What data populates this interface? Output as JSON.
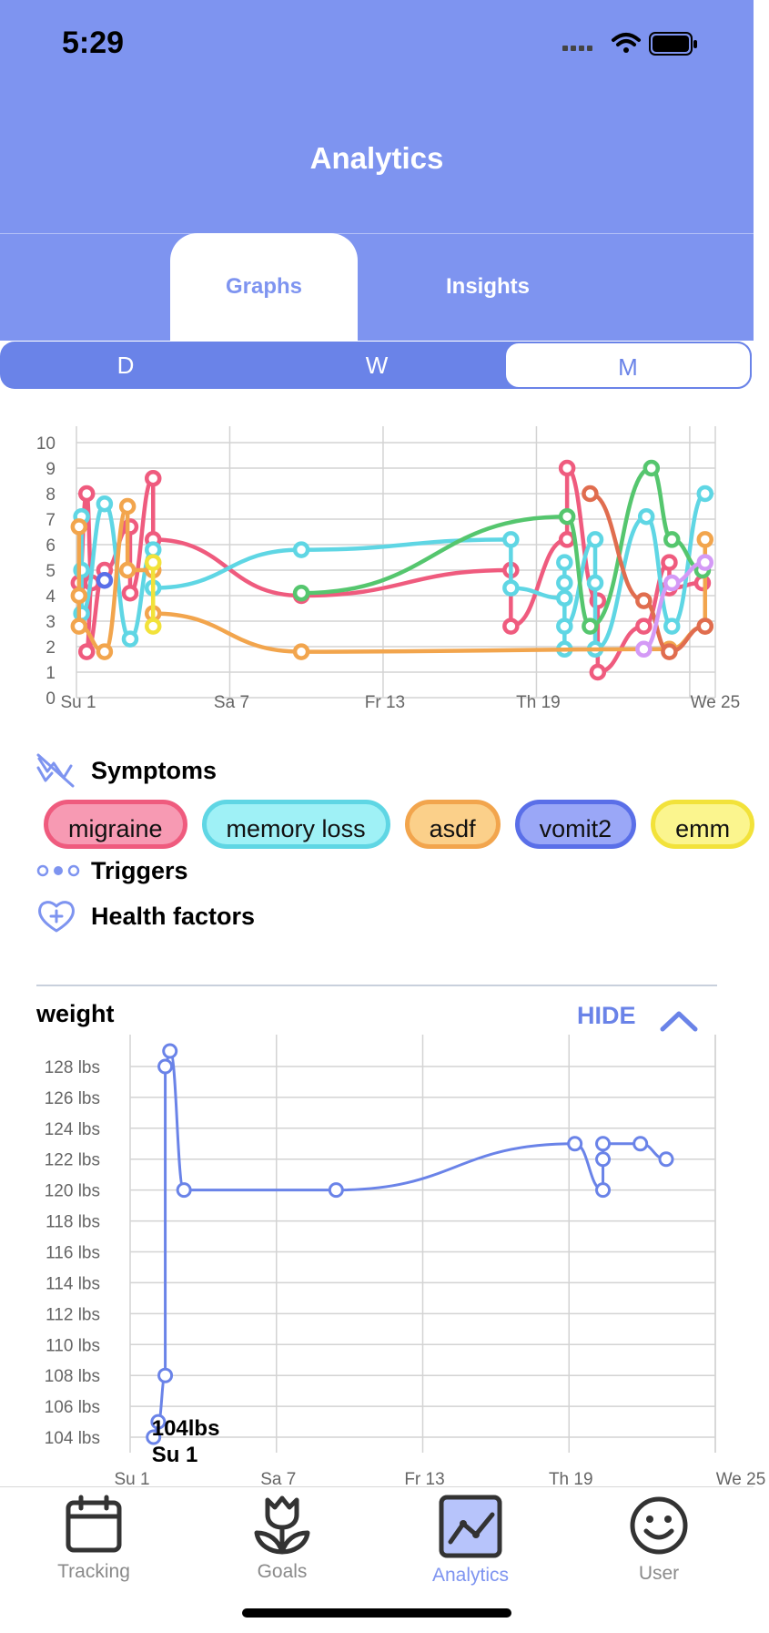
{
  "status_bar": {
    "time": "5:29"
  },
  "header": {
    "title": "Analytics"
  },
  "tabs": [
    {
      "label": "Graphs",
      "active": true
    },
    {
      "label": "Insights",
      "active": false
    }
  ],
  "range_selector": {
    "options": [
      "D",
      "W",
      "M"
    ],
    "selected": "M"
  },
  "legend": {
    "symptoms_label": "Symptoms",
    "triggers_label": "Triggers",
    "health_factors_label": "Health factors",
    "chips": [
      {
        "label": "migraine",
        "color": "#ef5b7e",
        "fill": "#f79ab3"
      },
      {
        "label": "memory loss",
        "color": "#5fd6e4",
        "fill": "#9ff1f6"
      },
      {
        "label": "asdf",
        "color": "#f2a54d",
        "fill": "#fbd08a"
      },
      {
        "label": "vomit2",
        "color": "#5a6fe8",
        "fill": "#9aa7f7"
      },
      {
        "label": "emm",
        "color": "#f2e23a",
        "fill": "#fbf58e"
      }
    ]
  },
  "weight_section": {
    "title": "weight",
    "hide_label": "HIDE",
    "tooltip_value": "104lbs",
    "tooltip_date": "Su 1"
  },
  "chart_data": [
    {
      "type": "line",
      "ylim": [
        0,
        10
      ],
      "yticks": [
        "0",
        "1",
        "2",
        "3",
        "4",
        "5",
        "6",
        "7",
        "8",
        "9",
        "10"
      ],
      "xticks": [
        "Su 1",
        "Sa 7",
        "Fr 13",
        "Th 19",
        "We 25"
      ],
      "xlim": [
        1,
        26
      ],
      "grid": true,
      "series": [
        {
          "name": "migraine",
          "color": "#ef5b7e",
          "points": [
            [
              1.1,
              4.5
            ],
            [
              1.4,
              8.0
            ],
            [
              1.6,
              4.5
            ],
            [
              1.4,
              1.8
            ],
            [
              2.1,
              5.0
            ],
            [
              3.1,
              6.7
            ],
            [
              3.1,
              4.1
            ],
            [
              4.0,
              8.6
            ],
            [
              4.0,
              6.2
            ],
            [
              9.8,
              4.0
            ],
            [
              18.0,
              5.0
            ],
            [
              18.0,
              2.8
            ],
            [
              20.2,
              6.2
            ],
            [
              20.2,
              9.0
            ],
            [
              21.4,
              3.8
            ],
            [
              21.4,
              1.0
            ],
            [
              23.2,
              2.8
            ],
            [
              24.2,
              5.3
            ],
            [
              24.2,
              4.3
            ],
            [
              25.5,
              4.5
            ]
          ]
        },
        {
          "name": "memory loss",
          "color": "#5fd6e4",
          "points": [
            [
              1.2,
              7.1
            ],
            [
              1.2,
              5.0
            ],
            [
              1.2,
              3.3
            ],
            [
              2.1,
              7.6
            ],
            [
              3.1,
              2.3
            ],
            [
              4.0,
              5.8
            ],
            [
              4.0,
              4.3
            ],
            [
              9.8,
              5.8
            ],
            [
              18.0,
              6.2
            ],
            [
              18.0,
              4.3
            ],
            [
              20.1,
              3.9
            ],
            [
              20.1,
              5.3
            ],
            [
              20.1,
              1.9
            ],
            [
              20.1,
              4.5
            ],
            [
              20.1,
              2.8
            ],
            [
              21.3,
              6.2
            ],
            [
              21.3,
              4.5
            ],
            [
              21.3,
              1.9
            ],
            [
              23.3,
              7.1
            ],
            [
              24.3,
              2.8
            ],
            [
              25.6,
              8.0
            ]
          ]
        },
        {
          "name": "asdf",
          "color": "#f2a54d",
          "points": [
            [
              1.1,
              6.7
            ],
            [
              1.1,
              4.0
            ],
            [
              1.1,
              2.8
            ],
            [
              2.1,
              1.8
            ],
            [
              3.0,
              7.5
            ],
            [
              3.0,
              5.0
            ],
            [
              4.0,
              5.0
            ],
            [
              4.0,
              3.3
            ],
            [
              9.8,
              1.8
            ],
            [
              24.2,
              1.9
            ],
            [
              25.6,
              2.8
            ],
            [
              25.6,
              6.2
            ]
          ]
        },
        {
          "name": "vomit2",
          "color": "#5a6fe8",
          "points": [
            [
              2.1,
              4.6
            ]
          ]
        },
        {
          "name": "emm",
          "color": "#f2e23a",
          "points": [
            [
              4.0,
              5.3
            ],
            [
              4.0,
              2.8
            ]
          ]
        },
        {
          "name": "green",
          "color": "#55c66e",
          "points": [
            [
              9.8,
              4.1
            ],
            [
              20.2,
              7.1
            ],
            [
              21.1,
              2.8
            ],
            [
              23.5,
              9.0
            ],
            [
              24.3,
              6.2
            ],
            [
              25.5,
              5.0
            ]
          ]
        },
        {
          "name": "red-orange",
          "color": "#e06d4f",
          "points": [
            [
              21.1,
              8.0
            ],
            [
              23.2,
              3.8
            ],
            [
              24.2,
              1.8
            ],
            [
              25.6,
              2.8
            ]
          ]
        },
        {
          "name": "violet",
          "color": "#d49af6",
          "points": [
            [
              23.2,
              1.9
            ],
            [
              24.3,
              4.5
            ],
            [
              25.6,
              5.3
            ]
          ]
        }
      ]
    },
    {
      "type": "line",
      "ylim": [
        103,
        129
      ],
      "yticks": [
        "104 lbs",
        "106 lbs",
        "108 lbs",
        "110 lbs",
        "112 lbs",
        "114 lbs",
        "116 lbs",
        "118 lbs",
        "120 lbs",
        "122 lbs",
        "124 lbs",
        "126 lbs",
        "128 lbs"
      ],
      "xticks": [
        "Su 1",
        "Sa 7",
        "Fr 13",
        "Th 19",
        "We 25"
      ],
      "xlim": [
        0,
        25
      ],
      "grid": true,
      "series": [
        {
          "name": "weight",
          "color": "#6a83e8",
          "points": [
            [
              1.0,
              104
            ],
            [
              1.2,
              105
            ],
            [
              1.5,
              108
            ],
            [
              1.5,
              128
            ],
            [
              1.7,
              129
            ],
            [
              2.3,
              120
            ],
            [
              8.8,
              120
            ],
            [
              19.0,
              123
            ],
            [
              20.2,
              120
            ],
            [
              20.2,
              122
            ],
            [
              20.2,
              123
            ],
            [
              21.8,
              123
            ],
            [
              22.9,
              122
            ]
          ]
        }
      ]
    }
  ],
  "bottom_nav": [
    {
      "label": "Tracking",
      "icon": "calendar-icon",
      "active": false
    },
    {
      "label": "Goals",
      "icon": "tulip-icon",
      "active": false
    },
    {
      "label": "Analytics",
      "icon": "line-chart-icon",
      "active": true
    },
    {
      "label": "User",
      "icon": "smiley-icon",
      "active": false
    }
  ]
}
